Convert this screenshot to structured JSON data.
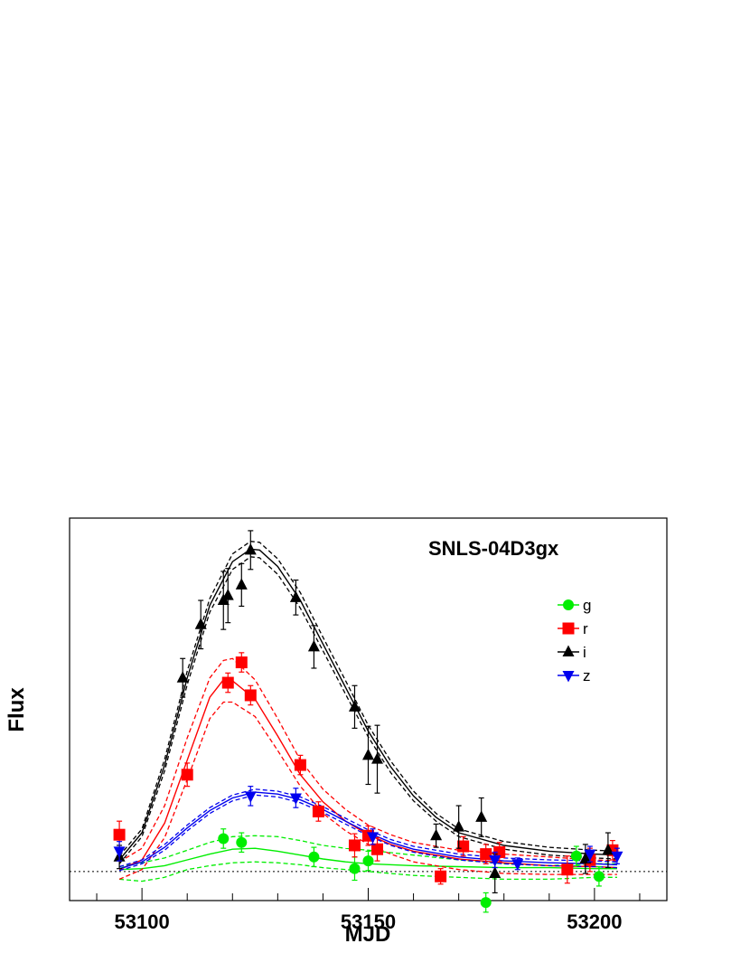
{
  "chart_data": {
    "type": "scatter",
    "title": "SNLS-04D3gx",
    "xlabel": "MJD",
    "ylabel": "Flux",
    "xlim": [
      53084,
      53216
    ],
    "ylim": [
      -30,
      365
    ],
    "x_ticks": [
      53100,
      53150,
      53200
    ],
    "x_tick_labels": [
      "53100",
      "53150",
      "53200"
    ],
    "y_ticks_labeled": false,
    "zero_line": 0,
    "legend_position": "top-right",
    "grid": false,
    "series": [
      {
        "name": "g",
        "color": "#00ee00",
        "marker": "circle",
        "points": [
          {
            "x": 53118,
            "y": 34,
            "err": 10
          },
          {
            "x": 53122,
            "y": 30,
            "err": 10
          },
          {
            "x": 53138,
            "y": 15,
            "err": 10
          },
          {
            "x": 53147,
            "y": 3,
            "err": 12
          },
          {
            "x": 53150,
            "y": 11,
            "err": 10
          },
          {
            "x": 53176,
            "y": -32,
            "err": 10
          },
          {
            "x": 53196,
            "y": 16,
            "err": 10
          },
          {
            "x": 53201,
            "y": -5,
            "err": 10
          }
        ],
        "model": [
          [
            53095,
            2
          ],
          [
            53100,
            3
          ],
          [
            53105,
            6
          ],
          [
            53110,
            12
          ],
          [
            53115,
            18
          ],
          [
            53120,
            23
          ],
          [
            53125,
            24
          ],
          [
            53130,
            21
          ],
          [
            53135,
            17
          ],
          [
            53140,
            13
          ],
          [
            53145,
            10
          ],
          [
            53150,
            8
          ],
          [
            53160,
            6
          ],
          [
            53170,
            5
          ],
          [
            53180,
            4
          ],
          [
            53190,
            4
          ],
          [
            53200,
            3
          ],
          [
            53205,
            3
          ]
        ],
        "model_lower": [
          [
            53095,
            -8
          ],
          [
            53100,
            -10
          ],
          [
            53105,
            -6
          ],
          [
            53110,
            2
          ],
          [
            53115,
            6
          ],
          [
            53120,
            9
          ],
          [
            53125,
            10
          ],
          [
            53130,
            9
          ],
          [
            53135,
            7
          ],
          [
            53140,
            4
          ],
          [
            53145,
            2
          ],
          [
            53150,
            0
          ],
          [
            53160,
            -4
          ],
          [
            53170,
            -6
          ],
          [
            53180,
            -8
          ],
          [
            53190,
            -8
          ],
          [
            53200,
            -6
          ],
          [
            53205,
            -6
          ]
        ],
        "model_upper": [
          [
            53095,
            5
          ],
          [
            53100,
            9
          ],
          [
            53105,
            14
          ],
          [
            53110,
            22
          ],
          [
            53115,
            30
          ],
          [
            53120,
            36
          ],
          [
            53125,
            37
          ],
          [
            53130,
            36
          ],
          [
            53135,
            32
          ],
          [
            53140,
            27
          ],
          [
            53145,
            24
          ],
          [
            53150,
            22
          ],
          [
            53160,
            17
          ],
          [
            53170,
            12
          ],
          [
            53180,
            8
          ],
          [
            53190,
            6
          ],
          [
            53200,
            8
          ],
          [
            53205,
            8
          ]
        ]
      },
      {
        "name": "r",
        "color": "#ff0000",
        "marker": "square",
        "points": [
          {
            "x": 53095,
            "y": 38,
            "err": 14
          },
          {
            "x": 53110,
            "y": 100,
            "err": 12
          },
          {
            "x": 53119,
            "y": 195,
            "err": 10
          },
          {
            "x": 53122,
            "y": 216,
            "err": 10
          },
          {
            "x": 53124,
            "y": 182,
            "err": 10
          },
          {
            "x": 53135,
            "y": 110,
            "err": 10
          },
          {
            "x": 53139,
            "y": 62,
            "err": 10
          },
          {
            "x": 53147,
            "y": 27,
            "err": 12
          },
          {
            "x": 53150,
            "y": 37,
            "err": 10
          },
          {
            "x": 53152,
            "y": 23,
            "err": 12
          },
          {
            "x": 53166,
            "y": -5,
            "err": 8
          },
          {
            "x": 53171,
            "y": 26,
            "err": 10
          },
          {
            "x": 53176,
            "y": 18,
            "err": 10
          },
          {
            "x": 53179,
            "y": 20,
            "err": 10
          },
          {
            "x": 53194,
            "y": 2,
            "err": 14
          },
          {
            "x": 53199,
            "y": 12,
            "err": 12
          },
          {
            "x": 53204,
            "y": 22,
            "err": 10
          }
        ],
        "model": [
          [
            53095,
            2
          ],
          [
            53100,
            12
          ],
          [
            53105,
            50
          ],
          [
            53110,
            115
          ],
          [
            53115,
            180
          ],
          [
            53118,
            198
          ],
          [
            53120,
            197
          ],
          [
            53125,
            178
          ],
          [
            53130,
            140
          ],
          [
            53135,
            100
          ],
          [
            53140,
            72
          ],
          [
            53145,
            52
          ],
          [
            53150,
            38
          ],
          [
            53155,
            28
          ],
          [
            53160,
            21
          ],
          [
            53170,
            13
          ],
          [
            53180,
            9
          ],
          [
            53190,
            6
          ],
          [
            53200,
            5
          ],
          [
            53205,
            4
          ]
        ],
        "model_lower": [
          [
            53095,
            -8
          ],
          [
            53100,
            2
          ],
          [
            53105,
            35
          ],
          [
            53110,
            95
          ],
          [
            53115,
            158
          ],
          [
            53118,
            175
          ],
          [
            53120,
            175
          ],
          [
            53125,
            160
          ],
          [
            53130,
            125
          ],
          [
            53135,
            88
          ],
          [
            53140,
            60
          ],
          [
            53145,
            42
          ],
          [
            53150,
            28
          ],
          [
            53155,
            18
          ],
          [
            53160,
            10
          ],
          [
            53170,
            2
          ],
          [
            53180,
            -2
          ],
          [
            53190,
            -3
          ],
          [
            53200,
            -3
          ],
          [
            53205,
            -3
          ]
        ],
        "model_upper": [
          [
            53095,
            10
          ],
          [
            53100,
            24
          ],
          [
            53105,
            68
          ],
          [
            53110,
            138
          ],
          [
            53115,
            200
          ],
          [
            53118,
            218
          ],
          [
            53120,
            220
          ],
          [
            53125,
            198
          ],
          [
            53130,
            158
          ],
          [
            53135,
            115
          ],
          [
            53140,
            85
          ],
          [
            53145,
            64
          ],
          [
            53150,
            48
          ],
          [
            53155,
            38
          ],
          [
            53160,
            30
          ],
          [
            53170,
            22
          ],
          [
            53180,
            18
          ],
          [
            53190,
            15
          ],
          [
            53200,
            12
          ],
          [
            53205,
            11
          ]
        ]
      },
      {
        "name": "i",
        "color": "#000000",
        "marker": "triangle-up",
        "points": [
          {
            "x": 53095,
            "y": 15,
            "err": 12
          },
          {
            "x": 53109,
            "y": 200,
            "err": 20
          },
          {
            "x": 53113,
            "y": 255,
            "err": 25
          },
          {
            "x": 53118,
            "y": 280,
            "err": 30
          },
          {
            "x": 53119,
            "y": 285,
            "err": 28
          },
          {
            "x": 53122,
            "y": 296,
            "err": 22
          },
          {
            "x": 53124,
            "y": 332,
            "err": 20
          },
          {
            "x": 53134,
            "y": 283,
            "err": 18
          },
          {
            "x": 53138,
            "y": 232,
            "err": 22
          },
          {
            "x": 53147,
            "y": 170,
            "err": 22
          },
          {
            "x": 53150,
            "y": 120,
            "err": 30
          },
          {
            "x": 53152,
            "y": 116,
            "err": 35
          },
          {
            "x": 53165,
            "y": 37,
            "err": 12
          },
          {
            "x": 53170,
            "y": 46,
            "err": 22
          },
          {
            "x": 53175,
            "y": 56,
            "err": 20
          },
          {
            "x": 53178,
            "y": -2,
            "err": 20
          },
          {
            "x": 53198,
            "y": 13,
            "err": 15
          },
          {
            "x": 53203,
            "y": 22,
            "err": 18
          }
        ],
        "model": [
          [
            53095,
            12
          ],
          [
            53100,
            40
          ],
          [
            53105,
            110
          ],
          [
            53110,
            200
          ],
          [
            53115,
            275
          ],
          [
            53120,
            320
          ],
          [
            53124,
            333
          ],
          [
            53126,
            332
          ],
          [
            53130,
            315
          ],
          [
            53135,
            280
          ],
          [
            53140,
            235
          ],
          [
            53145,
            190
          ],
          [
            53150,
            145
          ],
          [
            53155,
            108
          ],
          [
            53160,
            78
          ],
          [
            53165,
            56
          ],
          [
            53170,
            40
          ],
          [
            53180,
            27
          ],
          [
            53190,
            21
          ],
          [
            53200,
            18
          ],
          [
            53205,
            17
          ]
        ],
        "model_lower": [
          [
            53095,
            8
          ],
          [
            53100,
            36
          ],
          [
            53105,
            104
          ],
          [
            53110,
            193
          ],
          [
            53115,
            268
          ],
          [
            53120,
            312
          ],
          [
            53124,
            325
          ],
          [
            53126,
            324
          ],
          [
            53130,
            307
          ],
          [
            53135,
            272
          ],
          [
            53140,
            228
          ],
          [
            53145,
            183
          ],
          [
            53150,
            139
          ],
          [
            53155,
            102
          ],
          [
            53160,
            73
          ],
          [
            53165,
            52
          ],
          [
            53170,
            36
          ],
          [
            53180,
            23
          ],
          [
            53190,
            17
          ],
          [
            53200,
            14
          ],
          [
            53205,
            13
          ]
        ],
        "model_upper": [
          [
            53095,
            16
          ],
          [
            53100,
            44
          ],
          [
            53105,
            116
          ],
          [
            53110,
            207
          ],
          [
            53115,
            282
          ],
          [
            53120,
            328
          ],
          [
            53124,
            341
          ],
          [
            53126,
            340
          ],
          [
            53130,
            323
          ],
          [
            53135,
            288
          ],
          [
            53140,
            242
          ],
          [
            53145,
            197
          ],
          [
            53150,
            151
          ],
          [
            53155,
            114
          ],
          [
            53160,
            83
          ],
          [
            53165,
            60
          ],
          [
            53170,
            44
          ],
          [
            53180,
            31
          ],
          [
            53190,
            25
          ],
          [
            53200,
            22
          ],
          [
            53205,
            21
          ]
        ]
      },
      {
        "name": "z",
        "color": "#0000ee",
        "marker": "triangle-down",
        "points": [
          {
            "x": 53095,
            "y": 21,
            "err": 10
          },
          {
            "x": 53124,
            "y": 78,
            "err": 10
          },
          {
            "x": 53134,
            "y": 76,
            "err": 10
          },
          {
            "x": 53151,
            "y": 36,
            "err": 8
          },
          {
            "x": 53178,
            "y": 12,
            "err": 8
          },
          {
            "x": 53183,
            "y": 8,
            "err": 6
          },
          {
            "x": 53199,
            "y": 18,
            "err": 8
          },
          {
            "x": 53205,
            "y": 16,
            "err": 8
          }
        ],
        "model": [
          [
            53095,
            3
          ],
          [
            53100,
            10
          ],
          [
            53105,
            25
          ],
          [
            53110,
            45
          ],
          [
            53115,
            63
          ],
          [
            53120,
            76
          ],
          [
            53125,
            82
          ],
          [
            53130,
            80
          ],
          [
            53135,
            74
          ],
          [
            53140,
            64
          ],
          [
            53145,
            52
          ],
          [
            53150,
            40
          ],
          [
            53155,
            30
          ],
          [
            53160,
            23
          ],
          [
            53170,
            15
          ],
          [
            53180,
            11
          ],
          [
            53190,
            9
          ],
          [
            53200,
            8
          ],
          [
            53205,
            7
          ]
        ],
        "model_lower": [
          [
            53095,
            1
          ],
          [
            53100,
            8
          ],
          [
            53105,
            22
          ],
          [
            53110,
            42
          ],
          [
            53115,
            60
          ],
          [
            53120,
            73
          ],
          [
            53125,
            79
          ],
          [
            53130,
            77
          ],
          [
            53135,
            71
          ],
          [
            53140,
            61
          ],
          [
            53145,
            49
          ],
          [
            53150,
            37
          ],
          [
            53155,
            27
          ],
          [
            53160,
            20
          ],
          [
            53170,
            12
          ],
          [
            53180,
            8
          ],
          [
            53190,
            6
          ],
          [
            53200,
            5
          ],
          [
            53205,
            4
          ]
        ],
        "model_upper": [
          [
            53095,
            5
          ],
          [
            53100,
            12
          ],
          [
            53105,
            28
          ],
          [
            53110,
            48
          ],
          [
            53115,
            66
          ],
          [
            53120,
            79
          ],
          [
            53125,
            85
          ],
          [
            53130,
            83
          ],
          [
            53135,
            77
          ],
          [
            53140,
            67
          ],
          [
            53145,
            55
          ],
          [
            53150,
            43
          ],
          [
            53155,
            33
          ],
          [
            53160,
            26
          ],
          [
            53170,
            18
          ],
          [
            53180,
            14
          ],
          [
            53190,
            12
          ],
          [
            53200,
            11
          ],
          [
            53205,
            10
          ]
        ]
      }
    ]
  }
}
